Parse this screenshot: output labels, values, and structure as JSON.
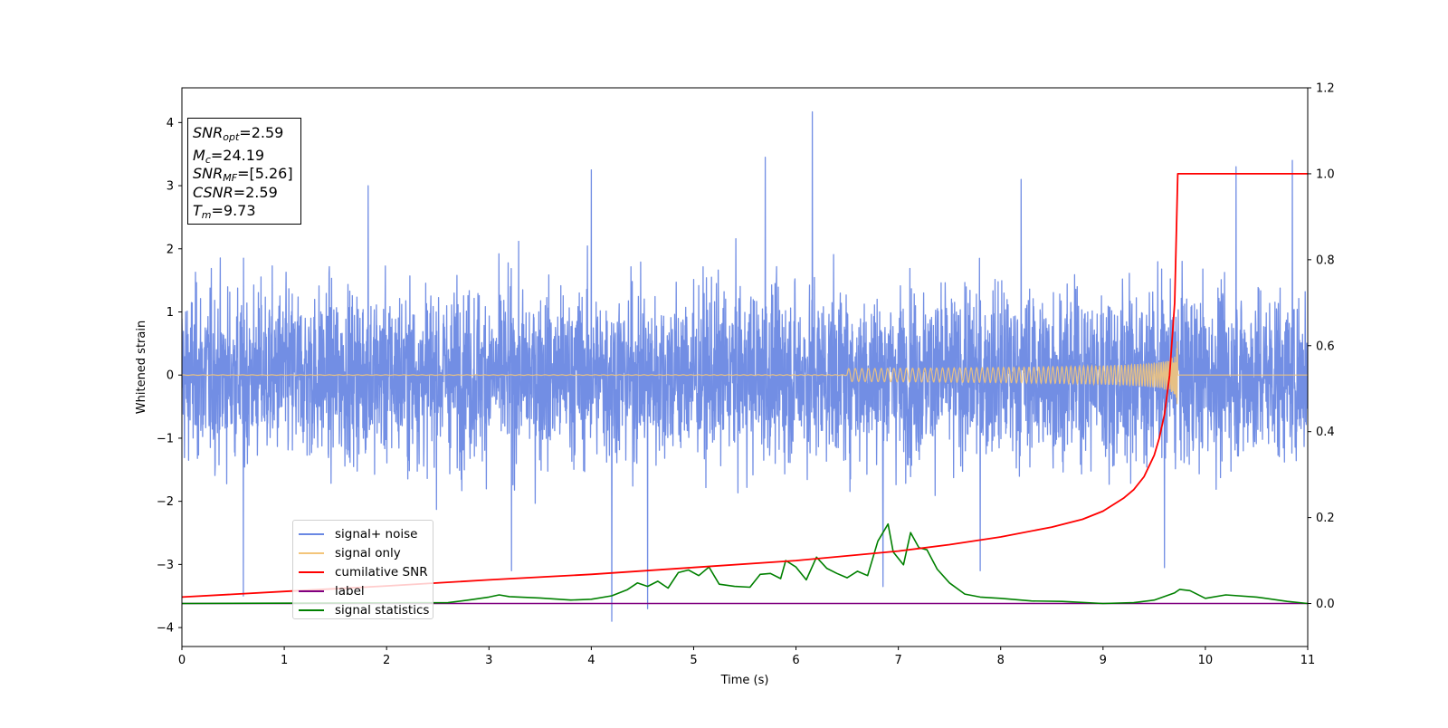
{
  "chart_data": {
    "type": "line",
    "xlabel": "Time (s)",
    "ylabel": "Whitened strain",
    "xlim": [
      0,
      11
    ],
    "ylim": [
      -4.3,
      4.55
    ],
    "y2lim": [
      -0.1,
      1.2
    ],
    "x_ticks": [
      "0",
      "1",
      "2",
      "3",
      "4",
      "5",
      "6",
      "7",
      "8",
      "9",
      "10",
      "11"
    ],
    "y_ticks": [
      "−4",
      "−3",
      "−2",
      "−1",
      "0",
      "1",
      "2",
      "3",
      "4"
    ],
    "y2_ticks": [
      "0.0",
      "0.2",
      "0.4",
      "0.6",
      "0.8",
      "1.0",
      "1.2"
    ],
    "grid": false,
    "legend_placement": "lower-left",
    "info_box": {
      "snr_opt_base": "SNR",
      "snr_opt_sub": "opt",
      "snr_opt_value": "=2.59",
      "mc_base": "M",
      "mc_sub": "c",
      "mc_value": "=24.19",
      "snr_mf_base": "SNR",
      "snr_mf_sub": "MF",
      "snr_mf_value": "=[5.26]",
      "csnr_base": "CSNR",
      "csnr_value": "=2.59",
      "tm_base": "T",
      "tm_sub": "m",
      "tm_value": "=9.73"
    },
    "series": [
      {
        "name": "signal+ noise",
        "color": "#6a88e3",
        "axis": "left",
        "description": "dense noise, typical amplitude about ±1.5, envelope about ±2.5",
        "spikes": [
          [
            0.6,
            -3.5
          ],
          [
            1.82,
            3.0
          ],
          [
            3.22,
            -3.1
          ],
          [
            4.0,
            3.25
          ],
          [
            4.2,
            -3.9
          ],
          [
            4.55,
            -3.7
          ],
          [
            5.7,
            3.45
          ],
          [
            6.16,
            4.17
          ],
          [
            6.85,
            -3.35
          ],
          [
            7.8,
            -3.1
          ],
          [
            8.2,
            3.1
          ],
          [
            9.6,
            -3.05
          ],
          [
            10.3,
            3.3
          ],
          [
            10.85,
            3.4
          ]
        ]
      },
      {
        "name": "signal only",
        "color": "#f3c57a",
        "axis": "left",
        "merger_time": 9.73,
        "peak_amplitude": 0.55
      },
      {
        "name": "cumilative SNR",
        "color": "#ff0000",
        "axis": "right",
        "x": [
          0,
          1,
          2,
          3,
          4,
          5,
          6,
          7,
          7.5,
          8,
          8.5,
          8.8,
          9.0,
          9.2,
          9.3,
          9.4,
          9.5,
          9.55,
          9.6,
          9.65,
          9.7,
          9.73,
          11
        ],
        "y": [
          0.015,
          0.028,
          0.041,
          0.055,
          0.068,
          0.084,
          0.1,
          0.122,
          0.137,
          0.155,
          0.178,
          0.196,
          0.215,
          0.245,
          0.265,
          0.295,
          0.345,
          0.385,
          0.44,
          0.53,
          0.7,
          1.0,
          1.0
        ]
      },
      {
        "name": "label",
        "color": "#800080",
        "axis": "right",
        "x": [
          0,
          11
        ],
        "y": [
          0,
          0
        ]
      },
      {
        "name": "signal statistics",
        "color": "#008000",
        "axis": "right",
        "x": [
          0,
          2.6,
          2.8,
          3.0,
          3.1,
          3.2,
          3.5,
          3.8,
          4.0,
          4.2,
          4.35,
          4.45,
          4.55,
          4.65,
          4.75,
          4.85,
          4.95,
          5.05,
          5.15,
          5.25,
          5.4,
          5.55,
          5.65,
          5.75,
          5.85,
          5.9,
          6.0,
          6.1,
          6.2,
          6.3,
          6.4,
          6.5,
          6.6,
          6.7,
          6.8,
          6.9,
          6.95,
          7.05,
          7.12,
          7.2,
          7.28,
          7.38,
          7.5,
          7.65,
          7.8,
          8.0,
          8.3,
          8.6,
          9.0,
          9.3,
          9.5,
          9.7,
          9.75,
          9.85,
          10.0,
          10.2,
          10.5,
          10.8,
          11.0
        ],
        "y": [
          0.0,
          0.002,
          0.008,
          0.015,
          0.02,
          0.016,
          0.013,
          0.008,
          0.01,
          0.018,
          0.032,
          0.048,
          0.04,
          0.052,
          0.036,
          0.072,
          0.078,
          0.065,
          0.085,
          0.045,
          0.04,
          0.038,
          0.068,
          0.07,
          0.058,
          0.1,
          0.085,
          0.055,
          0.108,
          0.082,
          0.07,
          0.06,
          0.075,
          0.065,
          0.145,
          0.185,
          0.12,
          0.09,
          0.165,
          0.13,
          0.125,
          0.08,
          0.048,
          0.022,
          0.015,
          0.012,
          0.006,
          0.005,
          0.0,
          0.002,
          0.008,
          0.025,
          0.033,
          0.03,
          0.012,
          0.02,
          0.015,
          0.005,
          0.0
        ]
      }
    ]
  }
}
